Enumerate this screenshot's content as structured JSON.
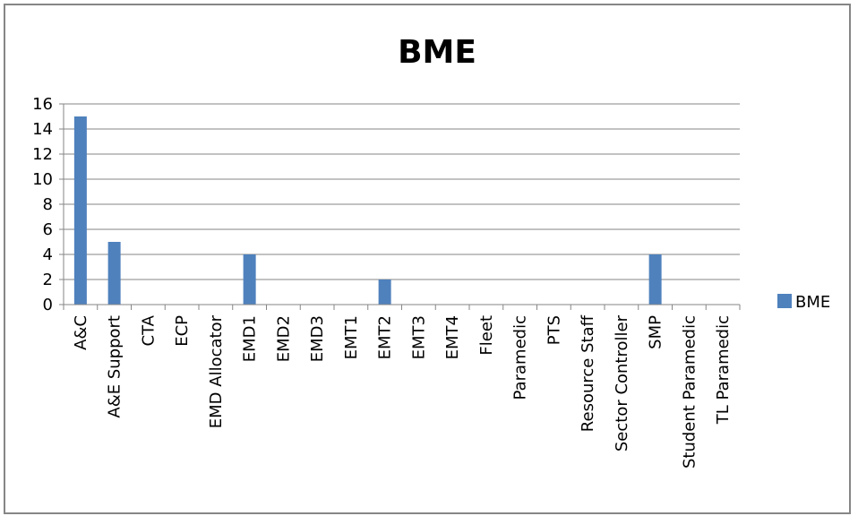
{
  "chart_data": {
    "type": "bar",
    "title": "BME",
    "xlabel": "",
    "ylabel": "",
    "categories": [
      "A&C",
      "A&E Support",
      "CTA",
      "ECP",
      "EMD Allocator",
      "EMD1",
      "EMD2",
      "EMD3",
      "EMT1",
      "EMT2",
      "EMT3",
      "EMT4",
      "Fleet",
      "Paramedic",
      "PTS",
      "Resource Staff",
      "Sector Controller",
      "SMP",
      "Student Paramedic",
      "TL Paramedic"
    ],
    "series": [
      {
        "name": "BME",
        "color": "#4F81BD",
        "values": [
          15,
          5,
          0,
          0,
          0,
          4,
          0,
          0,
          0,
          2,
          0,
          0,
          0,
          0,
          0,
          0,
          0,
          4,
          0,
          0
        ]
      }
    ],
    "ylim": [
      0,
      16
    ],
    "yticks": [
      0,
      2,
      4,
      6,
      8,
      10,
      12,
      14,
      16
    ],
    "grid": true,
    "legend": "right"
  }
}
